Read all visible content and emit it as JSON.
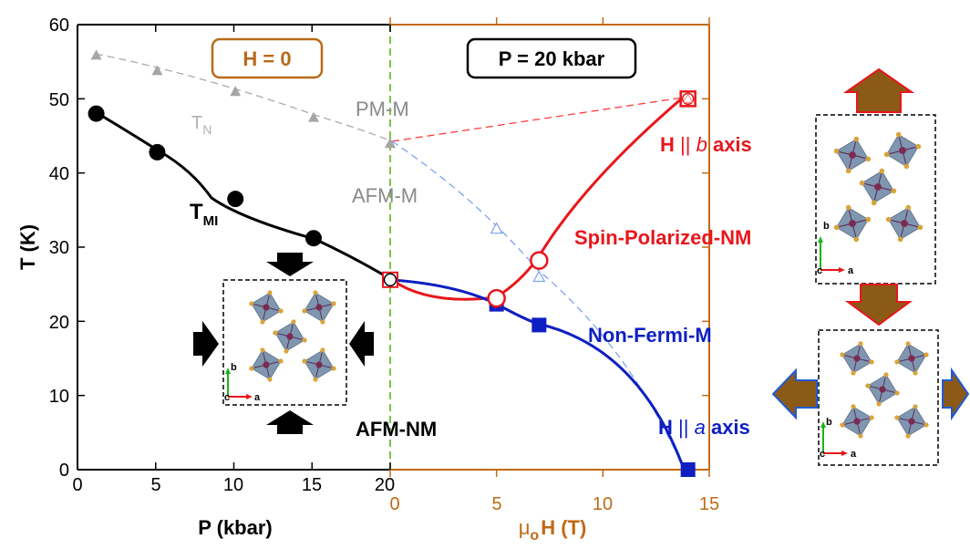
{
  "chart_data": {
    "type": "scatter",
    "left_axis": {
      "label": "P (kbar)",
      "range": [
        0,
        20
      ],
      "ticks": [
        "0",
        "5",
        "10",
        "15",
        "20"
      ]
    },
    "right_axis": {
      "label_mu": "μ",
      "label_sub": "o",
      "label_rest": "H (T)",
      "range": [
        0,
        15
      ],
      "ticks": [
        "0",
        "5",
        "10",
        "15"
      ]
    },
    "y_axis": {
      "label": "T (K)",
      "range": [
        0,
        60
      ],
      "ticks": [
        "0",
        "10",
        "20",
        "30",
        "40",
        "50",
        "60"
      ]
    },
    "grid": false,
    "boxes": {
      "left": "H = 0",
      "right": "P = 20 kbar"
    },
    "region_labels": {
      "pm_m": "PM-M",
      "afm_m": "AFM-M",
      "afm_nm": "AFM-NM",
      "spin_polarized": "Spin-Polarized-NM",
      "non_fermi": "Non-Fermi-M",
      "tn_main": "T",
      "tn_sub": "N",
      "tmi_main": "T",
      "tmi_sub": "MI",
      "h_b_prefix": "H",
      "h_b_axis": "b",
      "h_b_suffix": "axis",
      "h_a_prefix": "H",
      "h_a_axis": "a",
      "h_a_suffix": "axis",
      "parallel": "||"
    },
    "crystal_axes": {
      "b": "b",
      "a": "a",
      "c": "c"
    },
    "series": [
      {
        "key": "tmi",
        "axis": "P",
        "color": "#000000",
        "points": [
          [
            1.2,
            48
          ],
          [
            5.1,
            42.8
          ],
          [
            10.1,
            36.5
          ],
          [
            15.1,
            31.2
          ],
          [
            20,
            25.6
          ]
        ]
      },
      {
        "key": "tn",
        "axis": "P",
        "color": "#a6a6a6",
        "points": [
          [
            1.2,
            55.9
          ],
          [
            5.1,
            53.8
          ],
          [
            10.1,
            51
          ],
          [
            15.1,
            47.5
          ],
          [
            20,
            44
          ]
        ]
      },
      {
        "key": "h_b",
        "axis": "H",
        "color": "#e8161b",
        "points": [
          [
            0,
            25.6
          ],
          [
            5,
            23.1
          ],
          [
            7,
            28.2
          ],
          [
            14,
            50
          ]
        ]
      },
      {
        "key": "h_a",
        "axis": "H",
        "color": "#0d1fc2",
        "points": [
          [
            0,
            25.6
          ],
          [
            5,
            22.3
          ],
          [
            7,
            19.5
          ],
          [
            14,
            0
          ]
        ]
      },
      {
        "key": "tn_h_b",
        "axis": "H",
        "color": "#ff3b3b",
        "points": [
          [
            0,
            44
          ],
          [
            14,
            50
          ]
        ]
      },
      {
        "key": "tn_h_a",
        "axis": "H",
        "color": "#7fa3ee",
        "points": [
          [
            0,
            44
          ],
          [
            5,
            32.5
          ],
          [
            7,
            26
          ],
          [
            14,
            0
          ]
        ]
      }
    ],
    "colors": {
      "orange_axis": "#c06a15",
      "boxbrown": "#b86a1a",
      "green_dash": "#7dc242",
      "red": "#e8161b",
      "blue": "#0d1fc2",
      "gray": "#8a8a8a"
    }
  }
}
